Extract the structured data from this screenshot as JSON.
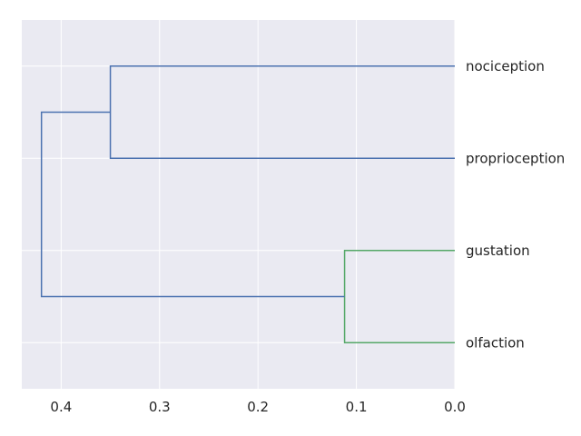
{
  "chart_data": {
    "type": "dendrogram",
    "orientation": "left",
    "title": "",
    "xlabel": "",
    "ylabel": "",
    "xlim": [
      0.44,
      0.0
    ],
    "x_ticks": [
      "0.4",
      "0.3",
      "0.2",
      "0.1",
      "0.0"
    ],
    "leaves": [
      "nociception",
      "proprioception",
      "gustation",
      "olfaction"
    ],
    "links": [
      {
        "left": "nociception",
        "right": "proprioception",
        "distance": 0.35,
        "color": "#4c72b0"
      },
      {
        "left": "gustation",
        "right": "olfaction",
        "distance": 0.112,
        "color": "#55a868"
      },
      {
        "left": "cluster:nociception+proprioception",
        "right": "cluster:gustation+olfaction",
        "distance": 0.42,
        "color": "#4c72b0"
      }
    ],
    "grid": true
  },
  "colors": {
    "background": "#eaeaf2",
    "grid": "#ffffff",
    "text": "#262626"
  }
}
